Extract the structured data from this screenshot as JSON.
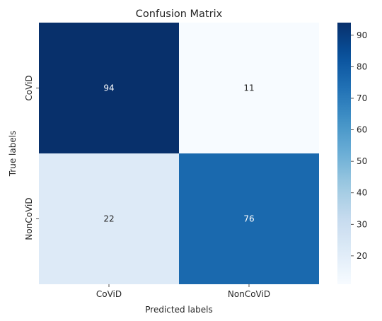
{
  "chart_data": {
    "type": "heatmap",
    "title": "Confusion Matrix",
    "xlabel": "Predicted labels",
    "ylabel": "True labels",
    "x_categories": [
      "CoViD",
      "NonCoViD"
    ],
    "y_categories": [
      "CoViD",
      "NonCoViD"
    ],
    "values": [
      [
        94,
        11
      ],
      [
        22,
        76
      ]
    ],
    "colormap": "Blues",
    "vmin": 11,
    "vmax": 94,
    "colorbar_ticks": [
      20,
      30,
      40,
      50,
      60,
      70,
      80,
      90
    ],
    "grid": false
  }
}
